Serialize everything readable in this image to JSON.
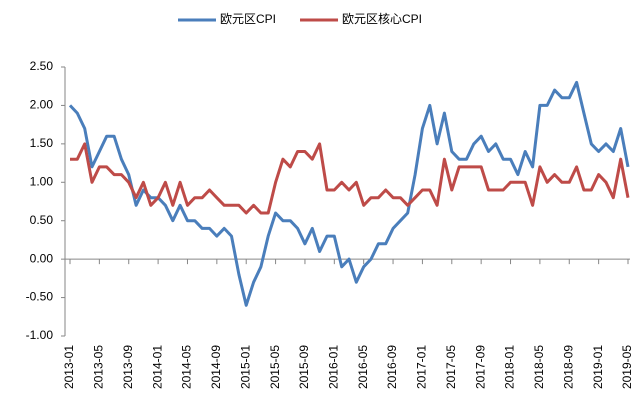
{
  "chart_data": {
    "type": "line",
    "categories": [
      "2013-01",
      null,
      null,
      null,
      "2013-05",
      null,
      null,
      null,
      "2013-09",
      null,
      null,
      null,
      "2014-01",
      null,
      null,
      null,
      "2014-05",
      null,
      null,
      null,
      "2014-09",
      null,
      null,
      null,
      "2015-01",
      null,
      null,
      null,
      "2015-05",
      null,
      null,
      null,
      "2015-09",
      null,
      null,
      null,
      "2016-01",
      null,
      null,
      null,
      "2016-05",
      null,
      null,
      null,
      "2016-09",
      null,
      null,
      null,
      "2017-01",
      null,
      null,
      null,
      "2017-05",
      null,
      null,
      null,
      "2017-09",
      null,
      null,
      null,
      "2018-01",
      null,
      null,
      null,
      "2018-05",
      null,
      null,
      null,
      "2018-09",
      null,
      null,
      null,
      "2019-01",
      null,
      null,
      null,
      "2019-05"
    ],
    "series": [
      {
        "name": "欧元区CPI",
        "color": "#4a7ebb",
        "values": [
          2.0,
          1.9,
          1.7,
          1.2,
          1.4,
          1.6,
          1.6,
          1.3,
          1.1,
          0.7,
          0.9,
          0.8,
          0.8,
          0.7,
          0.5,
          0.7,
          0.5,
          0.5,
          0.4,
          0.4,
          0.3,
          0.4,
          0.3,
          -0.2,
          -0.6,
          -0.3,
          -0.1,
          0.3,
          0.6,
          0.5,
          0.5,
          0.4,
          0.2,
          0.4,
          0.1,
          0.3,
          0.3,
          -0.1,
          0.0,
          -0.3,
          -0.1,
          0.0,
          0.2,
          0.2,
          0.4,
          0.5,
          0.6,
          1.1,
          1.7,
          2.0,
          1.5,
          1.9,
          1.4,
          1.3,
          1.3,
          1.5,
          1.6,
          1.4,
          1.5,
          1.3,
          1.3,
          1.1,
          1.4,
          1.2,
          2.0,
          2.0,
          2.2,
          2.1,
          2.1,
          2.3,
          1.9,
          1.5,
          1.4,
          1.5,
          1.4,
          1.7,
          1.2
        ]
      },
      {
        "name": "欧元区核心CPI",
        "color": "#be4b48",
        "values": [
          1.3,
          1.3,
          1.5,
          1.0,
          1.2,
          1.2,
          1.1,
          1.1,
          1.0,
          0.8,
          1.0,
          0.7,
          0.8,
          1.0,
          0.7,
          1.0,
          0.7,
          0.8,
          0.8,
          0.9,
          0.8,
          0.7,
          0.7,
          0.7,
          0.6,
          0.7,
          0.6,
          0.6,
          1.0,
          1.3,
          1.2,
          1.4,
          1.4,
          1.3,
          1.5,
          0.9,
          0.9,
          1.0,
          0.9,
          1.0,
          0.7,
          0.8,
          0.8,
          0.9,
          0.8,
          0.8,
          0.7,
          0.8,
          0.9,
          0.9,
          0.7,
          1.3,
          0.9,
          1.2,
          1.2,
          1.2,
          1.2,
          0.9,
          0.9,
          0.9,
          1.0,
          1.0,
          1.0,
          0.7,
          1.2,
          1.0,
          1.1,
          1.0,
          1.0,
          1.2,
          0.9,
          0.9,
          1.1,
          1.0,
          0.8,
          1.3,
          0.8
        ]
      }
    ],
    "ylim": [
      -1.0,
      2.5
    ],
    "yticks": [
      {
        "value": -1.0,
        "label": "-1.00"
      },
      {
        "value": -0.5,
        "label": "-0.50"
      },
      {
        "value": 0,
        "label": "0.00"
      },
      {
        "value": 0.5,
        "label": "0.50"
      },
      {
        "value": 1.0,
        "label": "1.00"
      },
      {
        "value": 1.5,
        "label": "1.50"
      },
      {
        "value": 2.0,
        "label": "2.00"
      },
      {
        "value": 2.5,
        "label": "2.50"
      }
    ],
    "grid": false,
    "legend": "top"
  }
}
